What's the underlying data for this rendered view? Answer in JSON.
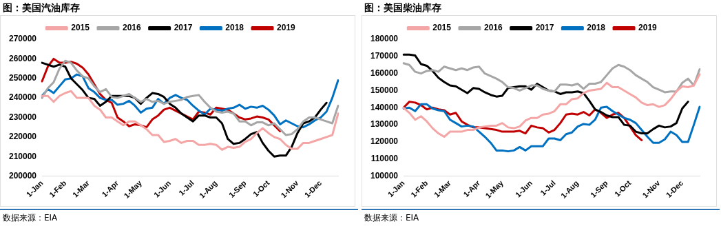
{
  "chart_data": [
    {
      "type": "line",
      "title": "图：美国汽油库存",
      "annotations": [
        "数据来源：EIA"
      ],
      "legend": "top",
      "marker": "none",
      "categories": [
        "1-Jan",
        null,
        null,
        null,
        "1-Feb",
        null,
        null,
        null,
        "1-Mar",
        null,
        null,
        null,
        null,
        "1-Apr",
        null,
        null,
        null,
        "1-May",
        null,
        null,
        null,
        null,
        "1-Jun",
        null,
        null,
        null,
        "1-Jul",
        null,
        null,
        null,
        "1-Aug",
        null,
        null,
        null,
        null,
        "1-Sep",
        null,
        null,
        null,
        "1-Oct",
        null,
        null,
        null,
        null,
        "1-Nov",
        null,
        null,
        null,
        "1-Dec",
        null,
        null,
        null
      ],
      "ylim": [
        200000,
        270000
      ],
      "yticks": [
        200000,
        210000,
        220000,
        230000,
        240000,
        250000,
        260000,
        270000
      ],
      "series": [
        {
          "name": "2015",
          "color": "#f4a6a6",
          "values": [
            241000,
            241000,
            238000,
            241000,
            242500,
            243500,
            240000,
            240000,
            240000,
            236000,
            234000,
            230000,
            230000,
            228000,
            226000,
            228000,
            228000,
            226000,
            224000,
            221000,
            221000,
            217500,
            218000,
            219000,
            217000,
            218000,
            218000,
            216000,
            216000,
            216500,
            216000,
            213500,
            215000,
            214500,
            215000,
            217500,
            219000,
            222000,
            224500,
            222000,
            220000,
            219000,
            216000,
            214000,
            214000,
            217000,
            217000,
            218000,
            219000,
            220000,
            221000,
            232000
          ]
        },
        {
          "name": "2016",
          "color": "#a6a6a6",
          "values": [
            240000,
            245000,
            248000,
            255000,
            259000,
            258000,
            254000,
            251000,
            250000,
            246000,
            243000,
            244500,
            240500,
            240000,
            241000,
            242000,
            240000,
            238000,
            239500,
            238000,
            238500,
            237000,
            238000,
            238500,
            239000,
            240500,
            241000,
            241500,
            238000,
            235000,
            233000,
            232500,
            233000,
            232000,
            228000,
            228000,
            226000,
            227500,
            227500,
            226000,
            227000,
            224000,
            221000,
            221500,
            224000,
            228000,
            230000,
            230000,
            229000,
            228000,
            227000,
            236000
          ]
        },
        {
          "name": "2017",
          "color": "#000000",
          "values": [
            258000,
            257000,
            256000,
            257000,
            256000,
            250000,
            247000,
            244000,
            240000,
            239500,
            236000,
            238000,
            241000,
            241000,
            241000,
            241000,
            240000,
            237000,
            240000,
            242500,
            242000,
            240500,
            237000,
            235000,
            232000,
            230000,
            228000,
            231000,
            231000,
            230000,
            230000,
            227000,
            219000,
            216500,
            217000,
            219000,
            221500,
            222500,
            217000,
            213000,
            210000,
            210500,
            210500,
            215000,
            222000,
            227000,
            228000,
            230000,
            234000,
            237500,
            null,
            null
          ]
        },
        {
          "name": "2018",
          "color": "#0070c0",
          "values": [
            241000,
            244500,
            242500,
            246000,
            249500,
            250000,
            252000,
            251000,
            245000,
            243000,
            240000,
            239000,
            239000,
            236500,
            237000,
            238500,
            236000,
            232500,
            234500,
            235000,
            239500,
            237000,
            240000,
            241500,
            240000,
            239000,
            236000,
            233500,
            231500,
            234500,
            234000,
            233500,
            234500,
            235000,
            236500,
            234500,
            235500,
            235000,
            236000,
            234000,
            231000,
            226500,
            228500,
            227000,
            225500,
            225000,
            226500,
            228500,
            230000,
            233000,
            240000,
            249000
          ]
        },
        {
          "name": "2019",
          "color": "#c00000",
          "values": [
            248500,
            256000,
            260000,
            258000,
            258000,
            258500,
            257500,
            255500,
            252000,
            247000,
            242000,
            239000,
            237500,
            230000,
            228000,
            225500,
            226500,
            226000,
            225000,
            229000,
            231000,
            234000,
            235000,
            233500,
            232000,
            230500,
            229000,
            233000,
            232500,
            231500,
            235000,
            234500,
            234000,
            232000,
            230000,
            229000,
            229500,
            230500,
            230000,
            229000,
            226000,
            223000,
            null,
            null,
            null,
            null,
            null,
            null,
            null,
            null,
            null,
            null
          ]
        }
      ]
    },
    {
      "type": "line",
      "title": "图：美国柴油库存",
      "annotations": [
        "数据来源：EIA"
      ],
      "legend": "top",
      "marker": "none",
      "categories": [
        "1-Jan",
        null,
        null,
        null,
        "1-Feb",
        null,
        null,
        null,
        "1-Mar",
        null,
        null,
        null,
        null,
        "1-Apr",
        null,
        null,
        null,
        "1-May",
        null,
        null,
        null,
        null,
        "1-Jun",
        null,
        null,
        null,
        "1-Jul",
        null,
        null,
        null,
        "1-Aug",
        null,
        null,
        null,
        null,
        "1-Sep",
        null,
        null,
        null,
        "1-Oct",
        null,
        null,
        null,
        null,
        "1-Nov",
        null,
        null,
        null,
        "1-Dec",
        null,
        null,
        null
      ],
      "ylim": [
        100000,
        180000
      ],
      "yticks": [
        100000,
        110000,
        120000,
        130000,
        140000,
        150000,
        160000,
        170000,
        180000
      ],
      "series": [
        {
          "name": "2015",
          "color": "#f4a6a6",
          "values": [
            140000,
            137000,
            133000,
            135000,
            132000,
            128000,
            125000,
            123000,
            126000,
            126000,
            126000,
            127000,
            127000,
            128500,
            129000,
            129500,
            129500,
            131000,
            128500,
            128000,
            129000,
            132500,
            134000,
            134000,
            136000,
            136500,
            138000,
            142000,
            142000,
            145000,
            145500,
            148500,
            150000,
            150500,
            151000,
            154500,
            152000,
            152000,
            150000,
            148000,
            146000,
            143000,
            141500,
            142000,
            140500,
            141500,
            145000,
            149500,
            152500,
            152000,
            153000,
            159500
          ]
        },
        {
          "name": "2016",
          "color": "#a6a6a6",
          "values": [
            166000,
            165000,
            161000,
            160000,
            161500,
            162000,
            161000,
            164000,
            163000,
            162000,
            163000,
            162000,
            163500,
            164000,
            160000,
            158500,
            157000,
            155000,
            152000,
            151500,
            150000,
            151500,
            153000,
            153000,
            151000,
            150000,
            149500,
            153500,
            153500,
            153000,
            154000,
            151000,
            154000,
            154000,
            155000,
            159000,
            163000,
            165000,
            164000,
            162000,
            159000,
            157000,
            155000,
            152000,
            150500,
            149000,
            149500,
            149500,
            154500,
            157000,
            153000,
            162500
          ]
        },
        {
          "name": "2017",
          "color": "#000000",
          "values": [
            171000,
            171000,
            170500,
            165500,
            164500,
            161500,
            157500,
            155000,
            153000,
            152500,
            150500,
            148500,
            151500,
            151000,
            149000,
            147500,
            146500,
            147000,
            151500,
            152000,
            152500,
            152500,
            150500,
            154000,
            152000,
            150000,
            149500,
            148000,
            149000,
            149000,
            149500,
            148500,
            144000,
            139000,
            137500,
            135500,
            134500,
            134500,
            130000,
            129500,
            126000,
            125000,
            125000,
            127500,
            129500,
            128500,
            129000,
            131000,
            139500,
            143500,
            null,
            null
          ]
        },
        {
          "name": "2018",
          "color": "#0070c0",
          "values": [
            139500,
            140000,
            138000,
            142000,
            142000,
            139500,
            138500,
            138000,
            133000,
            131000,
            129000,
            129500,
            129000,
            126000,
            123000,
            119500,
            115000,
            115000,
            114500,
            115000,
            117000,
            115000,
            117500,
            117500,
            117500,
            122000,
            122000,
            121000,
            124500,
            125500,
            129000,
            130500,
            130000,
            133000,
            140000,
            140500,
            138000,
            136000,
            134000,
            133000,
            131000,
            127000,
            123000,
            119500,
            119500,
            121500,
            126000,
            124000,
            120000,
            120000,
            130000,
            140500
          ]
        },
        {
          "name": "2019",
          "color": "#c00000",
          "values": [
            140000,
            143500,
            143000,
            141500,
            139000,
            140000,
            139000,
            138500,
            136000,
            137000,
            132000,
            130000,
            128500,
            128500,
            128000,
            127500,
            127000,
            126000,
            126000,
            126000,
            126500,
            125000,
            129500,
            128500,
            128000,
            125500,
            127000,
            131000,
            136000,
            136500,
            136000,
            137500,
            135500,
            139000,
            137000,
            134000,
            136000,
            137000,
            134000,
            129000,
            124000,
            121000,
            null,
            null,
            null,
            null,
            null,
            null,
            null,
            null,
            null,
            null
          ]
        }
      ]
    }
  ]
}
